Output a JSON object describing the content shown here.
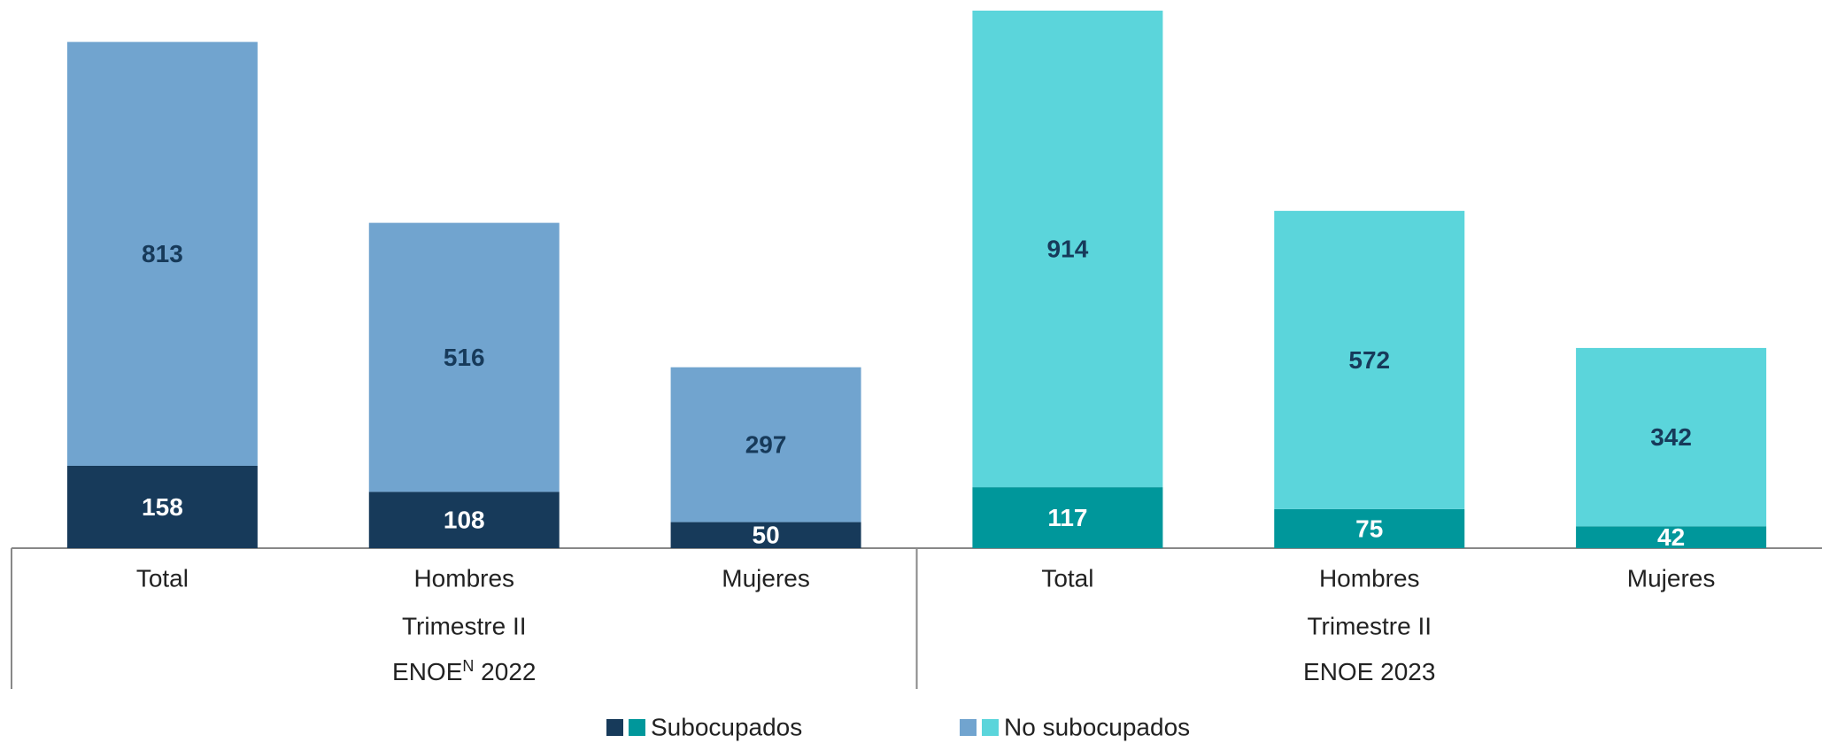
{
  "chart_data": {
    "type": "stacked-bar",
    "groups": [
      {
        "categories": [
          "Total",
          "Hombres",
          "Mujeres"
        ],
        "period": "Trimestre II",
        "label_parts": [
          {
            "text": "ENOE"
          },
          {
            "text": "N",
            "superscript": true
          },
          {
            "text": " 2022"
          }
        ]
      },
      {
        "categories": [
          "Total",
          "Hombres",
          "Mujeres"
        ],
        "period": "Trimestre II",
        "label_parts": [
          {
            "text": "ENOE 2023"
          }
        ]
      }
    ],
    "series": [
      {
        "name": "Subocupados",
        "colors": [
          "#173a5a",
          "#00979b"
        ],
        "label_color": "#ffffff",
        "values": [
          158,
          108,
          50,
          117,
          75,
          42
        ]
      },
      {
        "name": "No subocupados",
        "colors": [
          "#71a4cf",
          "#5bd5db"
        ],
        "label_color": "#173a5a",
        "values": [
          813,
          516,
          297,
          914,
          572,
          342
        ]
      }
    ],
    "legend": "bottom"
  }
}
